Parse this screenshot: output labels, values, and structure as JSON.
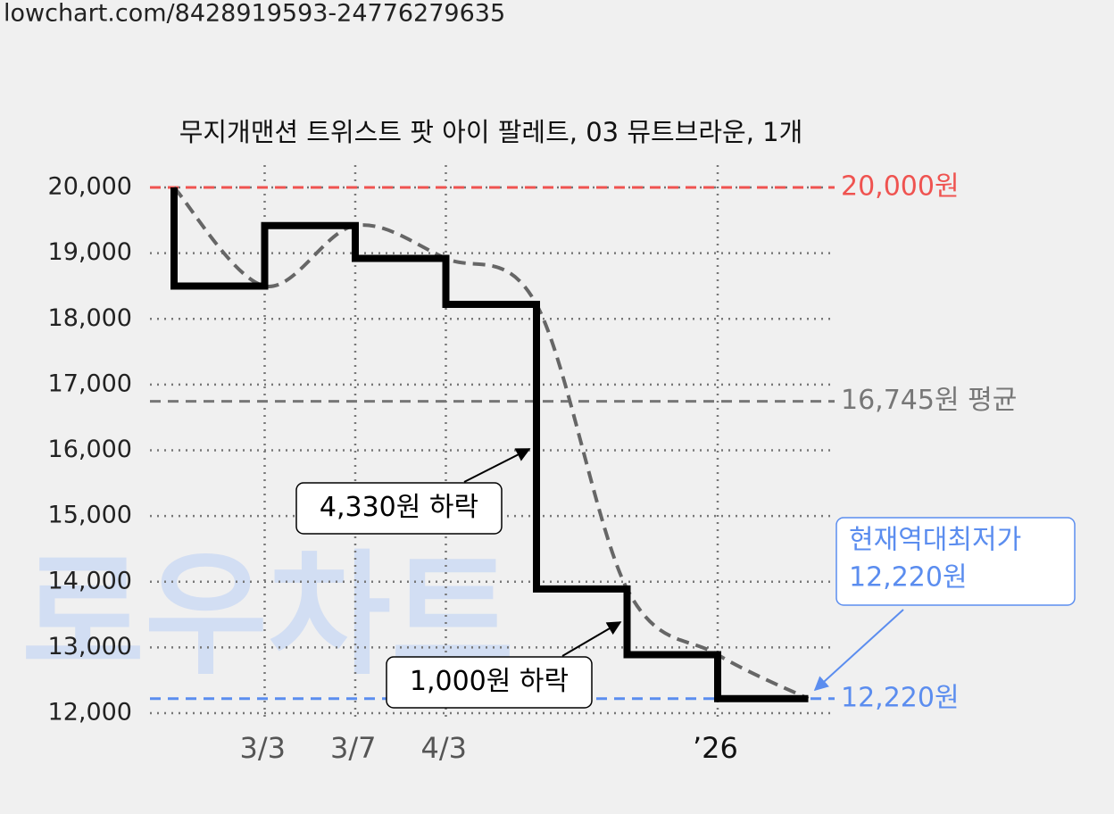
{
  "url": "lowchart.com/8428919593-24776279635",
  "watermark": "로우차트",
  "chart_data": {
    "type": "step-line",
    "title": "무지개맨션 트위스트 팟 아이 팔레트, 03 뮤트브라운, 1개",
    "categories": [
      null,
      "3/3",
      "3/7",
      "4/3",
      null,
      null,
      "’26",
      null
    ],
    "series": [
      {
        "color": "#000000",
        "values": [
          20000,
          18500,
          19420,
          18920,
          18220,
          13890,
          12890,
          12220
        ]
      }
    ],
    "trend_color": "#666666",
    "ylim": [
      12000,
      20000
    ],
    "yticks": [
      {
        "value": 12000,
        "label": "12,000"
      },
      {
        "value": 13000,
        "label": "13,000"
      },
      {
        "value": 14000,
        "label": "14,000"
      },
      {
        "value": 15000,
        "label": "15,000"
      },
      {
        "value": 16000,
        "label": "16,000"
      },
      {
        "value": 17000,
        "label": "17,000"
      },
      {
        "value": 18000,
        "label": "18,000"
      },
      {
        "value": 19000,
        "label": "19,000"
      },
      {
        "value": 20000,
        "label": "20,000"
      }
    ],
    "grid": true,
    "reference_lines": [
      {
        "value": 20000,
        "label": "20,000원",
        "color": "#ef5350"
      },
      {
        "value": 16745,
        "label": "16,745원 평균",
        "color": "#777777"
      },
      {
        "value": 12220,
        "label": "12,220원",
        "color": "#5b8def"
      }
    ],
    "annotations": [
      {
        "text": "4,330원 하락"
      },
      {
        "text": "1,000원 하락"
      },
      {
        "text": [
          "현재역대최저가",
          "12,220원"
        ],
        "color": "#5b8def"
      }
    ]
  }
}
